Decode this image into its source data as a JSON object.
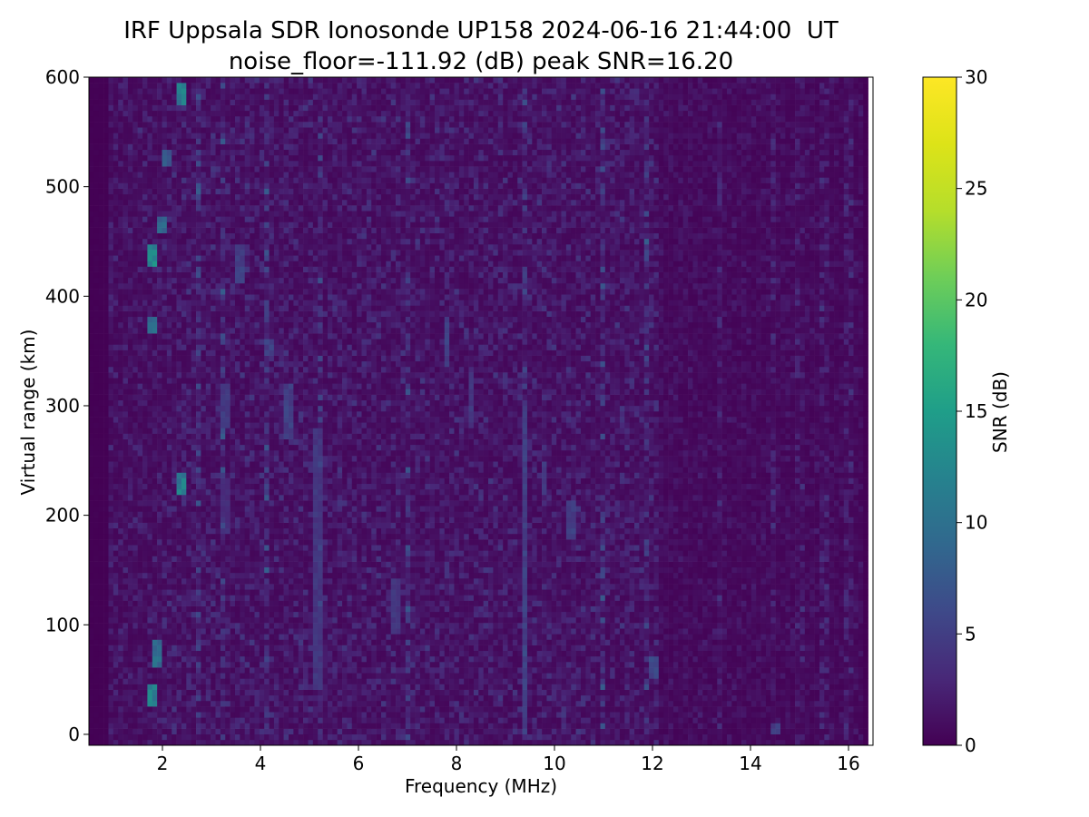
{
  "chart_data": {
    "type": "heatmap",
    "title": "IRF Uppsala SDR Ionosonde UP158 2024-06-16 21:44:00  UT",
    "subtitle": "noise_floor=-111.92 (dB) peak SNR=16.20",
    "xlabel": "Frequency (MHz)",
    "ylabel": "Virtual range (km)",
    "xlim": [
      0.5,
      16.5
    ],
    "ylim": [
      -10,
      600
    ],
    "xticks": [
      2,
      4,
      6,
      8,
      10,
      12,
      14,
      16
    ],
    "yticks": [
      0,
      100,
      200,
      300,
      400,
      500,
      600
    ],
    "data_extent": {
      "x": [
        0.5,
        16.4
      ],
      "y": [
        -10,
        600
      ]
    },
    "colorbar": {
      "label": "SNR (dB)",
      "range": [
        0,
        30
      ],
      "ticks": [
        0,
        5,
        10,
        15,
        20,
        25,
        30
      ],
      "colormap": "viridis"
    },
    "grid": false,
    "background_snr_typical": 1.5,
    "bright_features": [
      {
        "freq_mhz": 1.8,
        "range_km": [
          25,
          45
        ],
        "snr_db": 14
      },
      {
        "freq_mhz": 1.8,
        "range_km": [
          425,
          445
        ],
        "snr_db": 15
      },
      {
        "freq_mhz": 1.9,
        "range_km": [
          60,
          85
        ],
        "snr_db": 11
      },
      {
        "freq_mhz": 1.8,
        "range_km": [
          365,
          380
        ],
        "snr_db": 11
      },
      {
        "freq_mhz": 2.0,
        "range_km": [
          460,
          475
        ],
        "snr_db": 10
      },
      {
        "freq_mhz": 2.1,
        "range_km": [
          520,
          535
        ],
        "snr_db": 9
      },
      {
        "freq_mhz": 2.35,
        "range_km": [
          220,
          240
        ],
        "snr_db": 13
      },
      {
        "freq_mhz": 2.35,
        "range_km": [
          575,
          595
        ],
        "snr_db": 13
      },
      {
        "freq_mhz": 3.3,
        "range_km": [
          280,
          320
        ],
        "snr_db": 5
      },
      {
        "freq_mhz": 3.3,
        "range_km": [
          190,
          230
        ],
        "snr_db": 4
      },
      {
        "freq_mhz": 3.6,
        "range_km": [
          410,
          450
        ],
        "snr_db": 6
      },
      {
        "freq_mhz": 4.2,
        "range_km": [
          345,
          360
        ],
        "snr_db": 6
      },
      {
        "freq_mhz": 4.6,
        "range_km": [
          270,
          320
        ],
        "snr_db": 6
      },
      {
        "freq_mhz": 5.2,
        "range_km": [
          40,
          280
        ],
        "snr_db": 5
      },
      {
        "freq_mhz": 6.8,
        "range_km": [
          90,
          140
        ],
        "snr_db": 5
      },
      {
        "freq_mhz": 7.8,
        "range_km": [
          335,
          380
        ],
        "snr_db": 6
      },
      {
        "freq_mhz": 8.3,
        "range_km": [
          280,
          330
        ],
        "snr_db": 5
      },
      {
        "freq_mhz": 9.4,
        "range_km": [
          0,
          300
        ],
        "snr_db": 6
      },
      {
        "freq_mhz": 9.8,
        "range_km": [
          220,
          250
        ],
        "snr_db": 6
      },
      {
        "freq_mhz": 10.3,
        "range_km": [
          180,
          215
        ],
        "snr_db": 6
      },
      {
        "freq_mhz": 12.0,
        "range_km": [
          50,
          70
        ],
        "snr_db": 7
      },
      {
        "freq_mhz": 14.5,
        "range_km": [
          0,
          10
        ],
        "snr_db": 6
      }
    ],
    "strong_columns_mhz": [
      2.7,
      3.2,
      4.1,
      5.2,
      7.0,
      9.4,
      11.0,
      11.9,
      12.1,
      13.4,
      14.5,
      15.0,
      15.5,
      16.0
    ],
    "quiet_columns_mhz": [
      0.6,
      0.7,
      0.8,
      16.4
    ]
  }
}
